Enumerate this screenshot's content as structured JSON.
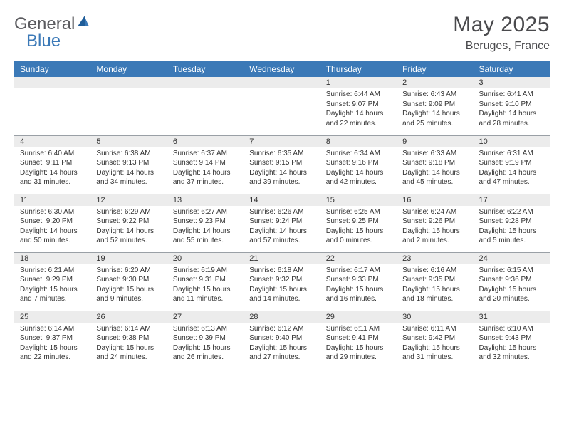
{
  "logo": {
    "text1": "General",
    "text2": "Blue"
  },
  "title": "May 2025",
  "location": "Beruges, France",
  "colors": {
    "header_bg": "#3b79b7",
    "header_text": "#ffffff",
    "daynum_bg": "#ececec",
    "cell_border": "#9aa0a6",
    "body_text": "#333333",
    "logo_gray": "#5b5b5f",
    "logo_blue": "#3b79b7",
    "title_color": "#4a4a4d"
  },
  "daysOfWeek": [
    "Sunday",
    "Monday",
    "Tuesday",
    "Wednesday",
    "Thursday",
    "Friday",
    "Saturday"
  ],
  "weeks": [
    [
      null,
      null,
      null,
      null,
      {
        "n": "1",
        "sr": "6:44 AM",
        "ss": "9:07 PM",
        "dl": "14 hours and 22 minutes."
      },
      {
        "n": "2",
        "sr": "6:43 AM",
        "ss": "9:09 PM",
        "dl": "14 hours and 25 minutes."
      },
      {
        "n": "3",
        "sr": "6:41 AM",
        "ss": "9:10 PM",
        "dl": "14 hours and 28 minutes."
      }
    ],
    [
      {
        "n": "4",
        "sr": "6:40 AM",
        "ss": "9:11 PM",
        "dl": "14 hours and 31 minutes."
      },
      {
        "n": "5",
        "sr": "6:38 AM",
        "ss": "9:13 PM",
        "dl": "14 hours and 34 minutes."
      },
      {
        "n": "6",
        "sr": "6:37 AM",
        "ss": "9:14 PM",
        "dl": "14 hours and 37 minutes."
      },
      {
        "n": "7",
        "sr": "6:35 AM",
        "ss": "9:15 PM",
        "dl": "14 hours and 39 minutes."
      },
      {
        "n": "8",
        "sr": "6:34 AM",
        "ss": "9:16 PM",
        "dl": "14 hours and 42 minutes."
      },
      {
        "n": "9",
        "sr": "6:33 AM",
        "ss": "9:18 PM",
        "dl": "14 hours and 45 minutes."
      },
      {
        "n": "10",
        "sr": "6:31 AM",
        "ss": "9:19 PM",
        "dl": "14 hours and 47 minutes."
      }
    ],
    [
      {
        "n": "11",
        "sr": "6:30 AM",
        "ss": "9:20 PM",
        "dl": "14 hours and 50 minutes."
      },
      {
        "n": "12",
        "sr": "6:29 AM",
        "ss": "9:22 PM",
        "dl": "14 hours and 52 minutes."
      },
      {
        "n": "13",
        "sr": "6:27 AM",
        "ss": "9:23 PM",
        "dl": "14 hours and 55 minutes."
      },
      {
        "n": "14",
        "sr": "6:26 AM",
        "ss": "9:24 PM",
        "dl": "14 hours and 57 minutes."
      },
      {
        "n": "15",
        "sr": "6:25 AM",
        "ss": "9:25 PM",
        "dl": "15 hours and 0 minutes."
      },
      {
        "n": "16",
        "sr": "6:24 AM",
        "ss": "9:26 PM",
        "dl": "15 hours and 2 minutes."
      },
      {
        "n": "17",
        "sr": "6:22 AM",
        "ss": "9:28 PM",
        "dl": "15 hours and 5 minutes."
      }
    ],
    [
      {
        "n": "18",
        "sr": "6:21 AM",
        "ss": "9:29 PM",
        "dl": "15 hours and 7 minutes."
      },
      {
        "n": "19",
        "sr": "6:20 AM",
        "ss": "9:30 PM",
        "dl": "15 hours and 9 minutes."
      },
      {
        "n": "20",
        "sr": "6:19 AM",
        "ss": "9:31 PM",
        "dl": "15 hours and 11 minutes."
      },
      {
        "n": "21",
        "sr": "6:18 AM",
        "ss": "9:32 PM",
        "dl": "15 hours and 14 minutes."
      },
      {
        "n": "22",
        "sr": "6:17 AM",
        "ss": "9:33 PM",
        "dl": "15 hours and 16 minutes."
      },
      {
        "n": "23",
        "sr": "6:16 AM",
        "ss": "9:35 PM",
        "dl": "15 hours and 18 minutes."
      },
      {
        "n": "24",
        "sr": "6:15 AM",
        "ss": "9:36 PM",
        "dl": "15 hours and 20 minutes."
      }
    ],
    [
      {
        "n": "25",
        "sr": "6:14 AM",
        "ss": "9:37 PM",
        "dl": "15 hours and 22 minutes."
      },
      {
        "n": "26",
        "sr": "6:14 AM",
        "ss": "9:38 PM",
        "dl": "15 hours and 24 minutes."
      },
      {
        "n": "27",
        "sr": "6:13 AM",
        "ss": "9:39 PM",
        "dl": "15 hours and 26 minutes."
      },
      {
        "n": "28",
        "sr": "6:12 AM",
        "ss": "9:40 PM",
        "dl": "15 hours and 27 minutes."
      },
      {
        "n": "29",
        "sr": "6:11 AM",
        "ss": "9:41 PM",
        "dl": "15 hours and 29 minutes."
      },
      {
        "n": "30",
        "sr": "6:11 AM",
        "ss": "9:42 PM",
        "dl": "15 hours and 31 minutes."
      },
      {
        "n": "31",
        "sr": "6:10 AM",
        "ss": "9:43 PM",
        "dl": "15 hours and 32 minutes."
      }
    ]
  ],
  "labels": {
    "sunrise": "Sunrise:",
    "sunset": "Sunset:",
    "daylight": "Daylight:"
  }
}
